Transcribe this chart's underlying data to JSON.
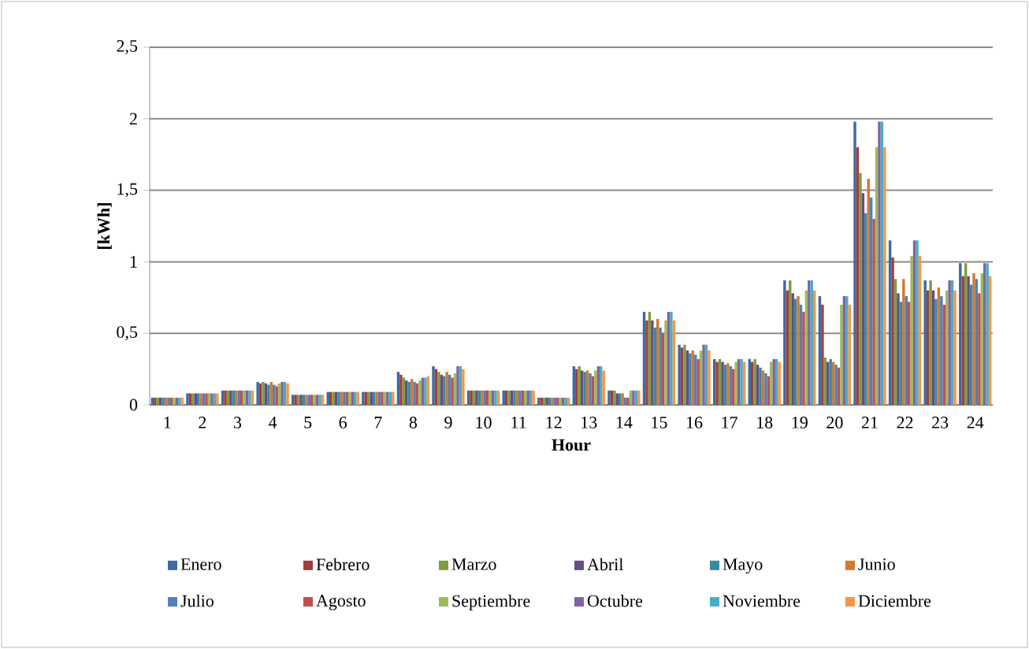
{
  "chart_data": {
    "type": "bar",
    "xlabel": "Hour",
    "ylabel": "[kWh]",
    "categories": [
      "1",
      "2",
      "3",
      "4",
      "5",
      "6",
      "7",
      "8",
      "9",
      "10",
      "11",
      "12",
      "13",
      "14",
      "15",
      "16",
      "17",
      "18",
      "19",
      "20",
      "21",
      "22",
      "23",
      "24"
    ],
    "ylim": [
      0,
      2.5
    ],
    "yticks": [
      0,
      {
        "value": 0.5,
        "label": "0,5"
      },
      1,
      {
        "value": 1.5,
        "label": "1,5"
      },
      2,
      {
        "value": 2.5,
        "label": "2,5"
      }
    ],
    "grid": "y",
    "legend": "bottom",
    "series": [
      {
        "name": "Enero",
        "color": "#3d6aa1",
        "values": [
          0.05,
          0.08,
          0.1,
          0.16,
          0.07,
          0.09,
          0.09,
          0.23,
          0.27,
          0.1,
          0.1,
          0.05,
          0.27,
          0.1,
          0.65,
          0.42,
          0.32,
          0.32,
          0.87,
          0.76,
          1.98,
          1.15,
          0.87,
          0.99
        ]
      },
      {
        "name": "Febrero",
        "color": "#a33c3a",
        "values": [
          0.05,
          0.08,
          0.1,
          0.15,
          0.07,
          0.09,
          0.09,
          0.21,
          0.25,
          0.1,
          0.1,
          0.05,
          0.25,
          0.1,
          0.59,
          0.4,
          0.3,
          0.3,
          0.8,
          0.7,
          1.8,
          1.03,
          0.8,
          0.9
        ]
      },
      {
        "name": "Marzo",
        "color": "#7e9c40",
        "values": [
          0.05,
          0.08,
          0.1,
          0.16,
          0.07,
          0.09,
          0.09,
          0.19,
          0.23,
          0.1,
          0.1,
          0.05,
          0.27,
          0.1,
          0.65,
          0.42,
          0.32,
          0.32,
          0.87,
          0.33,
          1.62,
          0.88,
          0.87,
          0.99
        ]
      },
      {
        "name": "Abril",
        "color": "#664b86",
        "values": [
          0.05,
          0.08,
          0.1,
          0.15,
          0.07,
          0.09,
          0.09,
          0.17,
          0.21,
          0.1,
          0.1,
          0.05,
          0.24,
          0.08,
          0.59,
          0.38,
          0.3,
          0.28,
          0.78,
          0.3,
          1.48,
          0.78,
          0.8,
          0.9
        ]
      },
      {
        "name": "Mayo",
        "color": "#378ba4",
        "values": [
          0.05,
          0.08,
          0.1,
          0.14,
          0.07,
          0.09,
          0.09,
          0.16,
          0.2,
          0.1,
          0.1,
          0.05,
          0.23,
          0.08,
          0.54,
          0.36,
          0.28,
          0.26,
          0.74,
          0.32,
          1.34,
          0.72,
          0.74,
          0.84
        ]
      },
      {
        "name": "Junio",
        "color": "#d17a30",
        "values": [
          0.05,
          0.08,
          0.1,
          0.16,
          0.07,
          0.09,
          0.09,
          0.18,
          0.23,
          0.1,
          0.1,
          0.05,
          0.24,
          0.08,
          0.6,
          0.38,
          0.29,
          0.24,
          0.76,
          0.3,
          1.58,
          0.88,
          0.82,
          0.92
        ]
      },
      {
        "name": "Julio",
        "color": "#4f81bd",
        "values": [
          0.05,
          0.08,
          0.1,
          0.14,
          0.07,
          0.09,
          0.09,
          0.16,
          0.21,
          0.1,
          0.1,
          0.05,
          0.22,
          0.05,
          0.54,
          0.35,
          0.27,
          0.22,
          0.7,
          0.28,
          1.45,
          0.76,
          0.76,
          0.88
        ]
      },
      {
        "name": "Agosto",
        "color": "#c0504d",
        "values": [
          0.05,
          0.08,
          0.1,
          0.13,
          0.07,
          0.09,
          0.09,
          0.15,
          0.19,
          0.1,
          0.1,
          0.05,
          0.2,
          0.05,
          0.5,
          0.32,
          0.25,
          0.2,
          0.65,
          0.26,
          1.3,
          0.72,
          0.7,
          0.78
        ]
      },
      {
        "name": "Septiembre",
        "color": "#9bbb59",
        "values": [
          0.05,
          0.08,
          0.1,
          0.15,
          0.07,
          0.09,
          0.09,
          0.17,
          0.22,
          0.1,
          0.1,
          0.05,
          0.24,
          0.1,
          0.59,
          0.38,
          0.3,
          0.3,
          0.8,
          0.7,
          1.8,
          1.04,
          0.8,
          0.92
        ]
      },
      {
        "name": "Octubre",
        "color": "#8064a2",
        "values": [
          0.05,
          0.08,
          0.1,
          0.16,
          0.07,
          0.09,
          0.09,
          0.19,
          0.27,
          0.1,
          0.1,
          0.05,
          0.27,
          0.1,
          0.65,
          0.42,
          0.32,
          0.32,
          0.87,
          0.76,
          1.98,
          1.15,
          0.87,
          0.99
        ]
      },
      {
        "name": "Noviembre",
        "color": "#4bacc6",
        "values": [
          0.05,
          0.08,
          0.1,
          0.16,
          0.07,
          0.09,
          0.09,
          0.19,
          0.27,
          0.1,
          0.1,
          0.05,
          0.27,
          0.1,
          0.65,
          0.42,
          0.32,
          0.32,
          0.87,
          0.76,
          1.98,
          1.15,
          0.87,
          0.99
        ]
      },
      {
        "name": "Diciembre",
        "color": "#f79646",
        "values": [
          0.05,
          0.08,
          0.1,
          0.15,
          0.07,
          0.09,
          0.09,
          0.2,
          0.25,
          0.1,
          0.1,
          0.05,
          0.24,
          0.1,
          0.59,
          0.38,
          0.3,
          0.3,
          0.8,
          0.7,
          1.8,
          1.04,
          0.8,
          0.9
        ]
      }
    ]
  }
}
